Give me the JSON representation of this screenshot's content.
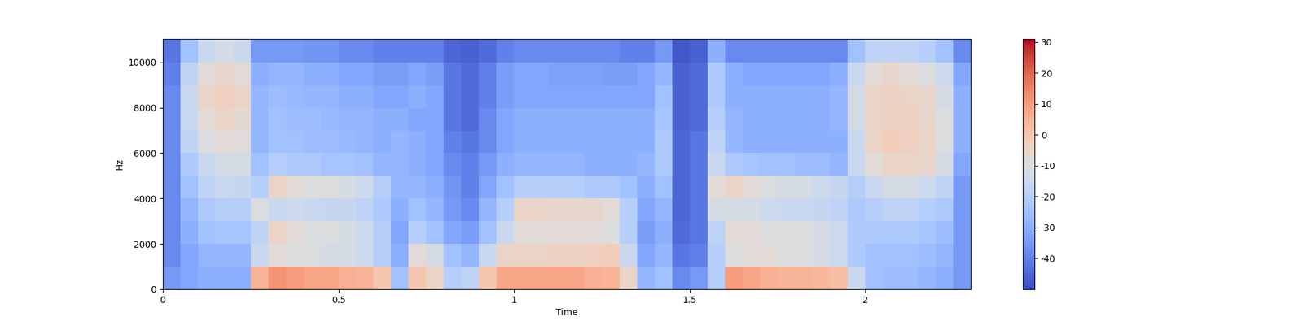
{
  "chart_data": {
    "type": "heatmap",
    "x_label": "Time",
    "y_label": "Hz",
    "xlim": [
      0,
      2.3
    ],
    "xticks": [
      0,
      0.5,
      1,
      1.5,
      2
    ],
    "ylim": [
      0,
      11025
    ],
    "yticks": [
      0,
      2000,
      4000,
      6000,
      8000,
      10000
    ],
    "x_edges": [
      0,
      0.05,
      0.1,
      0.15,
      0.2,
      0.25,
      0.3,
      0.35,
      0.4,
      0.45,
      0.5,
      0.55,
      0.6,
      0.65,
      0.7,
      0.75,
      0.8,
      0.85,
      0.9,
      0.95,
      1.0,
      1.05,
      1.1,
      1.15,
      1.2,
      1.25,
      1.3,
      1.35,
      1.4,
      1.45,
      1.5,
      1.55,
      1.6,
      1.65,
      1.7,
      1.75,
      1.8,
      1.85,
      1.9,
      1.95,
      2.0,
      2.05,
      2.1,
      2.15,
      2.2,
      2.25,
      2.3
    ],
    "y_edges": [
      0,
      1000,
      2000,
      3000,
      4000,
      5000,
      6000,
      7000,
      8000,
      9000,
      10000,
      11025
    ],
    "cells_by_time": [
      [
        -35,
        -38,
        -38,
        -38,
        -38,
        -38,
        -38,
        -38,
        -38,
        -40,
        -42
      ],
      [
        -32,
        -32,
        -30,
        -28,
        -25,
        -22,
        -18,
        -15,
        -15,
        -18,
        -25
      ],
      [
        -30,
        -28,
        -25,
        -22,
        -18,
        -15,
        -10,
        -8,
        -5,
        -8,
        -15
      ],
      [
        -30,
        -28,
        -24,
        -20,
        -15,
        -12,
        -8,
        -5,
        -3,
        -6,
        -12
      ],
      [
        -30,
        -28,
        -24,
        -20,
        -16,
        -12,
        -9,
        -7,
        -5,
        -8,
        -15
      ],
      [
        5,
        -15,
        -18,
        -10,
        -20,
        -25,
        -28,
        -28,
        -28,
        -30,
        -35
      ],
      [
        12,
        -8,
        -5,
        -15,
        -5,
        -20,
        -25,
        -25,
        -26,
        -28,
        -35
      ],
      [
        10,
        -10,
        -8,
        -14,
        -8,
        -22,
        -25,
        -26,
        -27,
        -28,
        -35
      ],
      [
        8,
        -10,
        -10,
        -15,
        -10,
        -22,
        -26,
        -26,
        -28,
        -30,
        -36
      ],
      [
        8,
        -12,
        -10,
        -16,
        -10,
        -24,
        -26,
        -27,
        -28,
        -30,
        -36
      ],
      [
        6,
        -12,
        -12,
        -16,
        -12,
        -24,
        -27,
        -28,
        -30,
        -32,
        -38
      ],
      [
        5,
        -14,
        -14,
        -18,
        -14,
        -25,
        -28,
        -28,
        -30,
        -32,
        -38
      ],
      [
        0,
        -20,
        -20,
        -22,
        -20,
        -28,
        -30,
        -30,
        -32,
        -34,
        -40
      ],
      [
        -25,
        -30,
        -32,
        -30,
        -28,
        -28,
        -28,
        -30,
        -32,
        -34,
        -40
      ],
      [
        0,
        -8,
        -20,
        -25,
        -28,
        -30,
        -30,
        -32,
        -30,
        -32,
        -40
      ],
      [
        -5,
        -12,
        -25,
        -28,
        -30,
        -32,
        -32,
        -32,
        -32,
        -34,
        -40
      ],
      [
        -20,
        -25,
        -32,
        -35,
        -36,
        -38,
        -40,
        -42,
        -42,
        -42,
        -45
      ],
      [
        -18,
        -28,
        -34,
        -38,
        -40,
        -40,
        -42,
        -44,
        -44,
        -44,
        -46
      ],
      [
        0,
        -15,
        -25,
        -28,
        -32,
        -35,
        -38,
        -38,
        -40,
        -40,
        -44
      ],
      [
        8,
        -5,
        -15,
        -20,
        -25,
        -30,
        -32,
        -32,
        -34,
        -34,
        -40
      ],
      [
        8,
        -5,
        -8,
        -5,
        -20,
        -28,
        -30,
        -30,
        -32,
        -32,
        -38
      ],
      [
        8,
        -5,
        -8,
        -5,
        -20,
        -28,
        -30,
        -30,
        -32,
        -32,
        -38
      ],
      [
        8,
        -4,
        -8,
        -6,
        -20,
        -28,
        -30,
        -30,
        -32,
        -33,
        -38
      ],
      [
        8,
        -4,
        -8,
        -6,
        -20,
        -28,
        -30,
        -30,
        -32,
        -33,
        -38
      ],
      [
        6,
        -3,
        -8,
        -6,
        -22,
        -30,
        -30,
        -30,
        -32,
        -33,
        -38
      ],
      [
        5,
        -2,
        -10,
        -8,
        -22,
        -30,
        -30,
        -30,
        -32,
        -34,
        -38
      ],
      [
        -5,
        -15,
        -20,
        -20,
        -25,
        -30,
        -30,
        -30,
        -32,
        -34,
        -40
      ],
      [
        -28,
        -32,
        -34,
        -32,
        -30,
        -28,
        -30,
        -30,
        -32,
        -32,
        -40
      ],
      [
        -25,
        -28,
        -30,
        -28,
        -25,
        -22,
        -22,
        -24,
        -25,
        -28,
        -35
      ],
      [
        -38,
        -42,
        -44,
        -45,
        -45,
        -45,
        -45,
        -46,
        -46,
        -46,
        -48
      ],
      [
        -35,
        -40,
        -42,
        -42,
        -42,
        -42,
        -42,
        -44,
        -44,
        -44,
        -46
      ],
      [
        -20,
        -20,
        -18,
        -12,
        -8,
        -15,
        -18,
        -20,
        -22,
        -22,
        -30
      ],
      [
        10,
        -10,
        -8,
        -12,
        -5,
        -22,
        -28,
        -28,
        -30,
        -30,
        -38
      ],
      [
        8,
        -8,
        -8,
        -12,
        -8,
        -24,
        -30,
        -30,
        -30,
        -32,
        -38
      ],
      [
        6,
        -8,
        -10,
        -14,
        -10,
        -25,
        -30,
        -30,
        -30,
        -32,
        -38
      ],
      [
        5,
        -10,
        -10,
        -15,
        -12,
        -25,
        -30,
        -30,
        -30,
        -32,
        -38
      ],
      [
        5,
        -10,
        -10,
        -15,
        -12,
        -26,
        -30,
        -30,
        -30,
        -32,
        -38
      ],
      [
        4,
        -12,
        -12,
        -16,
        -14,
        -26,
        -30,
        -30,
        -30,
        -32,
        -38
      ],
      [
        2,
        -14,
        -14,
        -18,
        -16,
        -28,
        -30,
        -28,
        -28,
        -30,
        -38
      ],
      [
        -15,
        -22,
        -22,
        -22,
        -20,
        -15,
        -15,
        -12,
        -12,
        -15,
        -25
      ],
      [
        -25,
        -25,
        -22,
        -20,
        -15,
        -8,
        -5,
        -5,
        -5,
        -8,
        -18
      ],
      [
        -26,
        -25,
        -22,
        -18,
        -12,
        -5,
        -2,
        -4,
        -4,
        -6,
        -18
      ],
      [
        -26,
        -25,
        -22,
        -18,
        -12,
        -5,
        -3,
        -4,
        -5,
        -8,
        -18
      ],
      [
        -28,
        -26,
        -24,
        -20,
        -14,
        -6,
        -5,
        -6,
        -6,
        -10,
        -20
      ],
      [
        -30,
        -28,
        -26,
        -22,
        -18,
        -12,
        -10,
        -10,
        -12,
        -14,
        -25
      ],
      [
        -35,
        -35,
        -35,
        -35,
        -35,
        -32,
        -30,
        -30,
        -30,
        -32,
        -38
      ]
    ],
    "colorbar_range": [
      -50,
      31
    ],
    "colorbar_ticks": [
      -40,
      -30,
      -20,
      -10,
      0,
      10,
      20,
      30
    ]
  }
}
